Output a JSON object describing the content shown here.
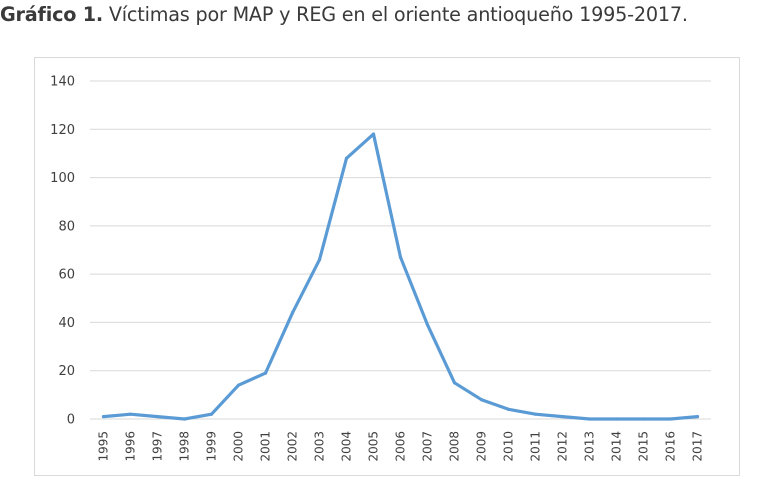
{
  "heading": {
    "lead": "Gráfico 1.",
    "text": " Víctimas por MAP y REG en el oriente antioqueño 1995-2017."
  },
  "chart_data": {
    "type": "line",
    "title": "",
    "xlabel": "",
    "ylabel": "",
    "ylim": [
      0,
      140
    ],
    "yticks": [
      0,
      20,
      40,
      60,
      80,
      100,
      120,
      140
    ],
    "grid": true,
    "legend": "none",
    "line_color": "#5b9bd5",
    "grid_color": "#d9d9d9",
    "categories": [
      "1995",
      "1996",
      "1997",
      "1998",
      "1999",
      "2000",
      "2001",
      "2002",
      "2003",
      "2004",
      "2005",
      "2006",
      "2007",
      "2008",
      "2009",
      "2010",
      "2011",
      "2012",
      "2013",
      "2014",
      "2015",
      "2016",
      "2017"
    ],
    "values": [
      1,
      2,
      1,
      0,
      2,
      14,
      19,
      44,
      66,
      108,
      118,
      67,
      39,
      15,
      8,
      4,
      2,
      1,
      0,
      0,
      0,
      0,
      1
    ]
  }
}
